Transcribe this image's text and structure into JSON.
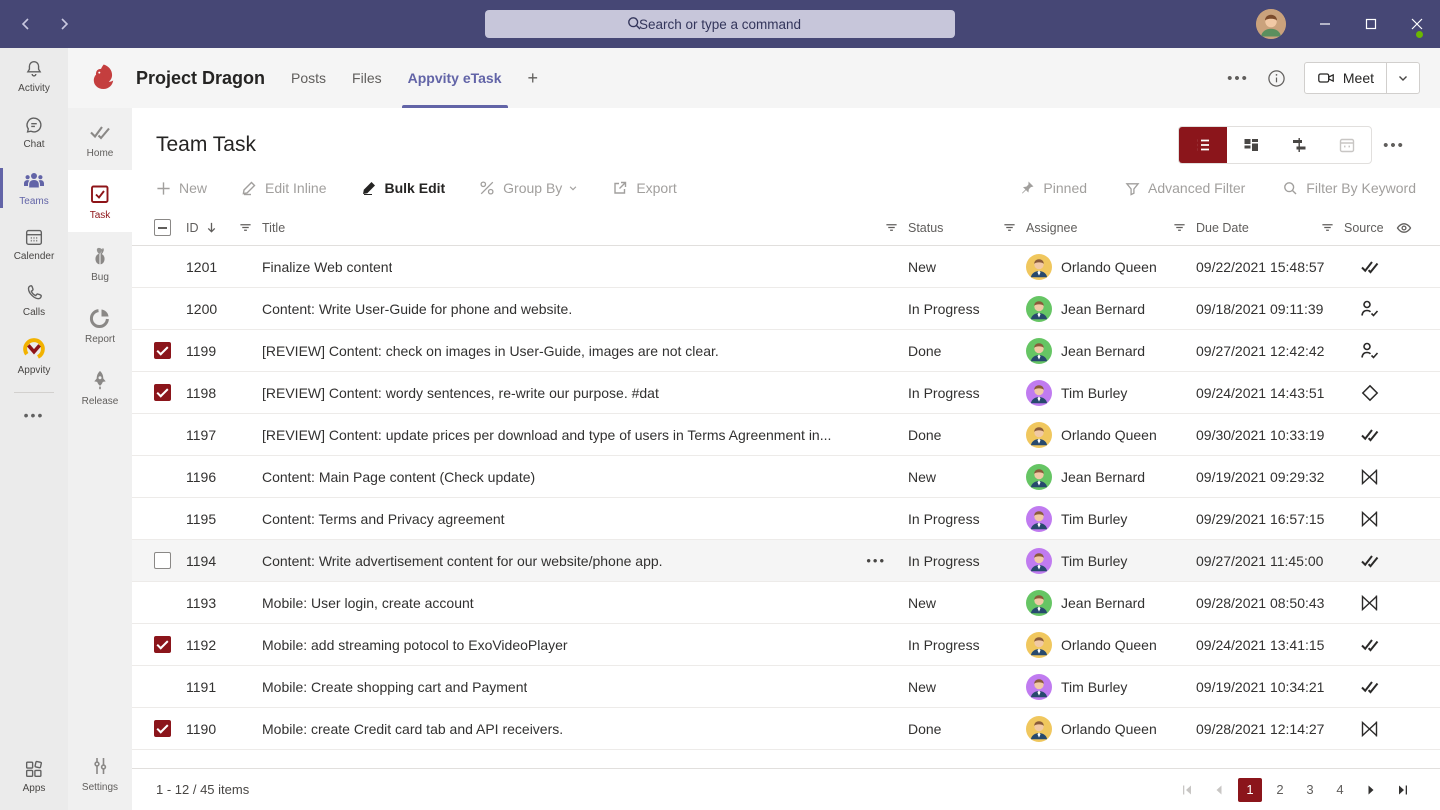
{
  "colors": {
    "accent_maroon": "#8b151b",
    "teams_purple": "#6264a7",
    "topbar_purple": "#464775"
  },
  "titlebar": {
    "search_placeholder": "Search or type a command",
    "window_controls": {
      "minimize": "–",
      "maximize": "□",
      "close": "×"
    }
  },
  "rail": {
    "items": [
      {
        "label": "Activity"
      },
      {
        "label": "Chat"
      },
      {
        "label": "Teams",
        "active": true
      },
      {
        "label": "Calender"
      },
      {
        "label": "Calls"
      },
      {
        "label": "Appvity"
      }
    ],
    "more": "•••",
    "apps_label": "Apps"
  },
  "channel_header": {
    "team_name": "Project Dragon",
    "tabs": [
      {
        "label": "Posts"
      },
      {
        "label": "Files"
      },
      {
        "label": "Appvity eTask",
        "active": true
      }
    ],
    "add_tab": "+",
    "more": "•••",
    "meet_label": "Meet"
  },
  "app_sidebar": {
    "items": [
      {
        "label": "Home"
      },
      {
        "label": "Task",
        "active": true
      },
      {
        "label": "Bug"
      },
      {
        "label": "Report"
      },
      {
        "label": "Release"
      }
    ],
    "settings_label": "Settings"
  },
  "page": {
    "title": "Team Task"
  },
  "toolbar": {
    "new_label": "New",
    "edit_inline_label": "Edit Inline",
    "bulk_edit_label": "Bulk Edit",
    "group_by_label": "Group By",
    "export_label": "Export",
    "pinned_label": "Pinned",
    "advanced_filter_label": "Advanced Filter",
    "filter_keyword_label": "Filter By Keyword"
  },
  "table": {
    "columns": [
      "ID",
      "Title",
      "Status",
      "Assignee",
      "Due Date",
      "Source"
    ],
    "rows": [
      {
        "id": "1201",
        "title": "Finalize Web content",
        "status": "New",
        "assignee": "Orlando Queen",
        "avatar_color": "#f0c75e",
        "due": "09/22/2021 15:48:57",
        "source": "planner",
        "checked": false,
        "hover": false
      },
      {
        "id": "1200",
        "title": "Content: Write User-Guide for phone and website.",
        "status": "In Progress",
        "assignee": "Jean Bernard",
        "avatar_color": "#66c564",
        "due": "09/18/2021 09:11:39",
        "source": "personcheck",
        "checked": false,
        "hover": false
      },
      {
        "id": "1199",
        "title": "[REVIEW] Content: check on images in User-Guide, images are not clear.",
        "status": "Done",
        "assignee": "Jean Bernard",
        "avatar_color": "#66c564",
        "due": "09/27/2021 12:42:42",
        "source": "personcheck",
        "checked": true,
        "hover": false
      },
      {
        "id": "1198",
        "title": "[REVIEW] Content: wordy sentences, re-write our purpose. #dat",
        "status": "In Progress",
        "assignee": "Tim Burley",
        "avatar_color": "#c07bf0",
        "due": "09/24/2021 14:43:51",
        "source": "diamond",
        "checked": true,
        "hover": false
      },
      {
        "id": "1197",
        "title": "[REVIEW] Content: update prices per download and type of users in Terms Agreenment in...",
        "status": "Done",
        "assignee": "Orlando Queen",
        "avatar_color": "#f0c75e",
        "due": "09/30/2021 10:33:19",
        "source": "planner",
        "checked": false,
        "hover": false
      },
      {
        "id": "1196",
        "title": "Content: Main Page content (Check update)",
        "status": "New",
        "assignee": "Jean Bernard",
        "avatar_color": "#66c564",
        "due": "09/19/2021 09:29:32",
        "source": "bowtie",
        "checked": false,
        "hover": false
      },
      {
        "id": "1195",
        "title": "Content: Terms and Privacy agreement",
        "status": "In Progress",
        "assignee": "Tim Burley",
        "avatar_color": "#c07bf0",
        "due": "09/29/2021 16:57:15",
        "source": "bowtie",
        "checked": false,
        "hover": false
      },
      {
        "id": "1194",
        "title": "Content: Write advertisement content for our website/phone app.",
        "status": "In Progress",
        "assignee": "Tim Burley",
        "avatar_color": "#c07bf0",
        "due": "09/27/2021 11:45:00",
        "source": "planner",
        "checked": false,
        "hover": true
      },
      {
        "id": "1193",
        "title": "Mobile: User login, create account",
        "status": "New",
        "assignee": "Jean Bernard",
        "avatar_color": "#66c564",
        "due": "09/28/2021 08:50:43",
        "source": "bowtie",
        "checked": false,
        "hover": false
      },
      {
        "id": "1192",
        "title": "Mobile: add streaming potocol to ExoVideoPlayer",
        "status": "In Progress",
        "assignee": "Orlando Queen",
        "avatar_color": "#f0c75e",
        "due": "09/24/2021 13:41:15",
        "source": "planner",
        "checked": true,
        "hover": false
      },
      {
        "id": "1191",
        "title": "Mobile: Create shopping cart and Payment",
        "status": "New",
        "assignee": "Tim Burley",
        "avatar_color": "#c07bf0",
        "due": "09/19/2021 10:34:21",
        "source": "planner",
        "checked": false,
        "hover": false
      },
      {
        "id": "1190",
        "title": "Mobile: create Credit card tab and API receivers.",
        "status": "Done",
        "assignee": "Orlando Queen",
        "avatar_color": "#f0c75e",
        "due": "09/28/2021 12:14:27",
        "source": "bowtie",
        "checked": true,
        "hover": false
      }
    ]
  },
  "footer": {
    "count_label": "1 - 12 / 45 items",
    "pages": [
      "1",
      "2",
      "3",
      "4"
    ],
    "active_page": "1"
  }
}
